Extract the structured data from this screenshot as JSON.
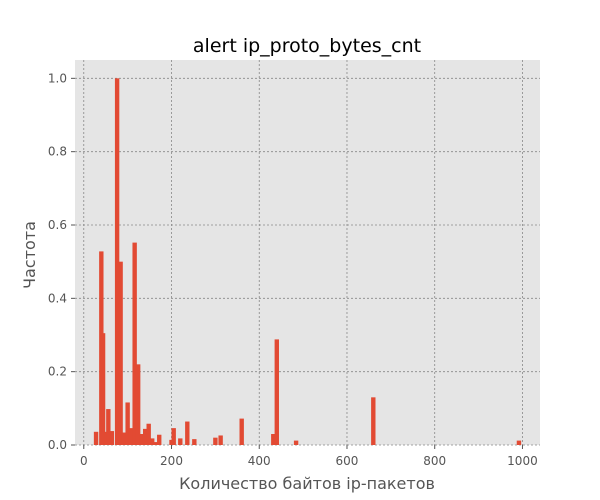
{
  "chart_data": {
    "type": "bar",
    "title": "alert ip_proto_bytes_cnt",
    "xlabel": "Количество байтов ip-пакетов",
    "ylabel": "Частота",
    "xlim": [
      -20,
      1040
    ],
    "ylim": [
      0,
      1.05
    ],
    "xticks": [
      0,
      200,
      400,
      600,
      800,
      1000
    ],
    "xtick_labels": [
      "0",
      "200",
      "400",
      "600",
      "800",
      "1000"
    ],
    "yticks": [
      0.0,
      0.2,
      0.4,
      0.6,
      0.8,
      1.0
    ],
    "ytick_labels": [
      "0.0",
      "0.2",
      "0.4",
      "0.6",
      "0.8",
      "1.0"
    ],
    "grid": true,
    "bar_width": 10,
    "x": [
      28,
      40,
      44,
      52,
      56,
      64,
      76,
      84,
      92,
      100,
      108,
      116,
      124,
      132,
      140,
      148,
      156,
      164,
      172,
      200,
      205,
      220,
      236,
      252,
      300,
      312,
      360,
      432,
      440,
      484,
      660,
      992
    ],
    "values": [
      0.036,
      0.528,
      0.305,
      0.036,
      0.098,
      0.038,
      1.0,
      0.5,
      0.034,
      0.116,
      0.046,
      0.552,
      0.22,
      0.03,
      0.044,
      0.058,
      0.018,
      0.008,
      0.028,
      0.014,
      0.046,
      0.018,
      0.064,
      0.016,
      0.02,
      0.026,
      0.072,
      0.03,
      0.288,
      0.012,
      0.13,
      0.012
    ],
    "colors": {
      "bar": "#E24A33",
      "plot_background": "#E5E5E5",
      "grid": "#888888",
      "text": "#555555"
    }
  }
}
